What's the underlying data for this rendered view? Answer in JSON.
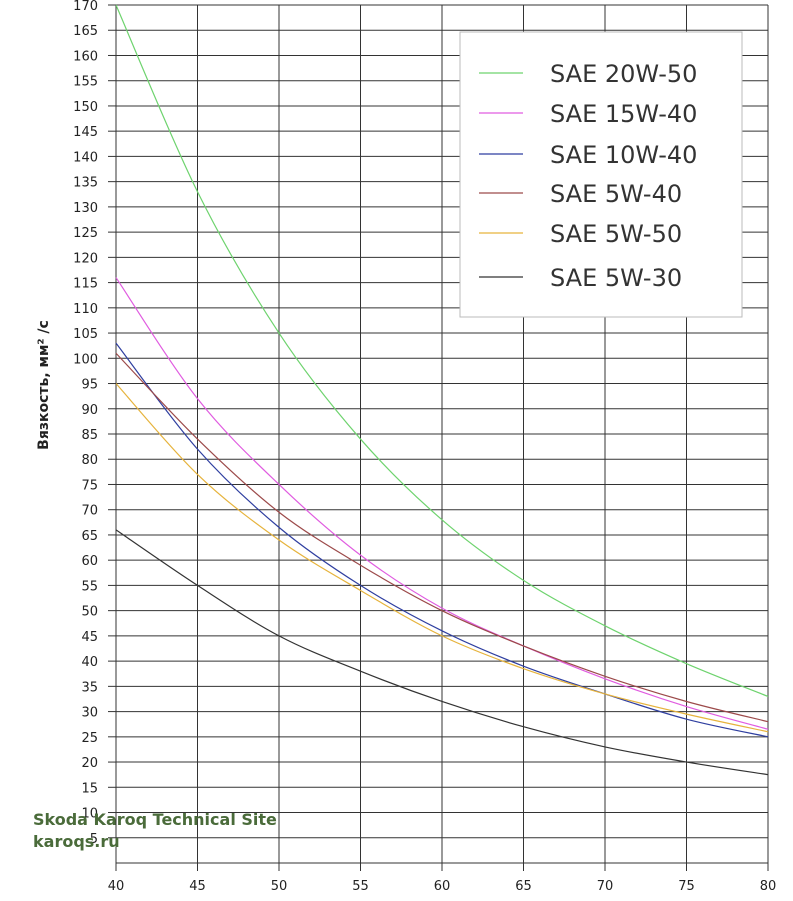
{
  "chart_data": {
    "type": "line",
    "title": "",
    "xlabel": "",
    "ylabel": "Вязкость,  мм² /с",
    "xlim": [
      40,
      80
    ],
    "ylim": [
      0,
      170
    ],
    "x_ticks": [
      "40",
      "45",
      "50",
      "55",
      "60",
      "65",
      "70",
      "75",
      "80"
    ],
    "y_ticks": [
      "170",
      "165",
      "160",
      "155",
      "150",
      "145",
      "140",
      "135",
      "130",
      "125",
      "120",
      "115",
      "110",
      "105",
      "100",
      "95",
      "90",
      "85",
      "80",
      "75",
      "70",
      "65",
      "60",
      "55",
      "50",
      "45",
      "40",
      "35",
      "30",
      "25",
      "20",
      "15",
      "10",
      "5"
    ],
    "grid": true,
    "legend_position": "top-right",
    "x": [
      40,
      45,
      50,
      55,
      60,
      65,
      70,
      75,
      80
    ],
    "series": [
      {
        "name": "SAE 20W-50",
        "color": "#6ed36e",
        "values": [
          170,
          133,
          105,
          84,
          68,
          56,
          47,
          39.5,
          33
        ]
      },
      {
        "name": "SAE 15W-40",
        "color": "#e05ce0",
        "values": [
          116,
          92,
          75,
          61,
          50.5,
          43,
          36.5,
          31,
          26.5
        ]
      },
      {
        "name": "SAE 10W-40",
        "color": "#2f3fa0",
        "values": [
          103,
          82,
          66.5,
          55,
          46,
          39,
          33.5,
          28.5,
          25
        ]
      },
      {
        "name": "SAE 5W-40",
        "color": "#9c4a4a",
        "values": [
          101,
          84,
          69.5,
          59,
          50,
          43,
          37,
          32,
          28
        ]
      },
      {
        "name": "SAE 5W-50",
        "color": "#e6b33c",
        "values": [
          95,
          77,
          64,
          54,
          45,
          38.5,
          33.5,
          29.5,
          26
        ]
      },
      {
        "name": "SAE 5W-30",
        "color": "#333333",
        "values": [
          66,
          55,
          45,
          38,
          32,
          27,
          23,
          20,
          17.5
        ]
      }
    ]
  },
  "watermark": {
    "line1": "Skoda Karoq Technical Site",
    "line2": "karoqs.ru"
  }
}
